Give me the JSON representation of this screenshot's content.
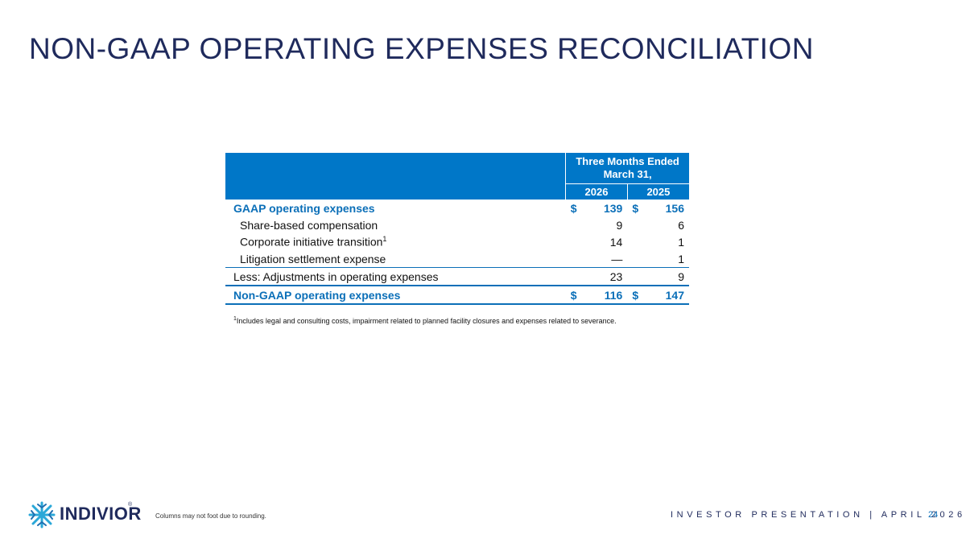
{
  "title": "NON-GAAP OPERATING EXPENSES RECONCILIATION",
  "table": {
    "period_header_line1": "Three Months Ended",
    "period_header_line2": "March 31,",
    "years": [
      "2026",
      "2025"
    ],
    "rows": [
      {
        "label": "GAAP operating expenses",
        "cur1": "$",
        "v2026": "139",
        "cur2": "$",
        "v2025": "156"
      },
      {
        "label": "Share-based compensation",
        "v2026": "9",
        "v2025": "6"
      },
      {
        "label": "Corporate initiative transition",
        "sup": "1",
        "v2026": "14",
        "v2025": "1"
      },
      {
        "label": "Litigation settlement expense",
        "v2026": "—",
        "v2025": "1"
      },
      {
        "label": "Less: Adjustments in operating expenses",
        "v2026": "23",
        "v2025": "9"
      },
      {
        "label": "Non-GAAP operating expenses",
        "cur1": "$",
        "v2026": "116",
        "cur2": "$",
        "v2025": "147"
      }
    ]
  },
  "footnote": {
    "marker": "1",
    "text": "Includes legal and consulting costs, impairment related to planned facility closures and expenses related to severance."
  },
  "footer": {
    "logo_text": "INDIVIOR",
    "logo_reg": "®",
    "rounding_note": "Columns may not foot due to rounding.",
    "presentation_label": "INVESTOR PRESENTATION | APRIL 2026",
    "page_number": "24"
  },
  "colors": {
    "title": "#1f2a5c",
    "header_fill": "#0077c8",
    "accent_text": "#0b6fb8",
    "logo_icon": "#2ba8d8"
  }
}
